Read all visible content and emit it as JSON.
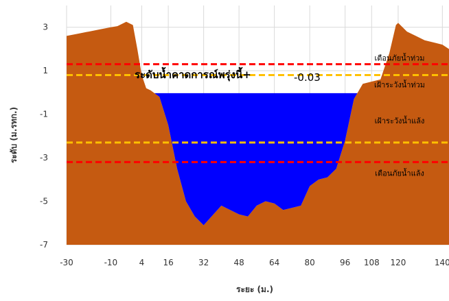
{
  "chart_data": {
    "type": "area",
    "title": "",
    "xlabel": "ระยะ (ม.)",
    "ylabel": "ระดับ (ม.รทก.)",
    "xlim": [
      -30,
      143
    ],
    "ylim": [
      -7,
      4
    ],
    "x_ticks": [
      -30,
      -10,
      4,
      16,
      32,
      48,
      64,
      80,
      96,
      108,
      120,
      140
    ],
    "y_ticks": [
      3,
      1,
      -1,
      -3,
      -5,
      -7
    ],
    "grid": true,
    "ground_profile": {
      "name": "",
      "color": "#c55a11",
      "points": [
        [
          -30,
          2.6
        ],
        [
          -25,
          2.7
        ],
        [
          -20,
          2.8
        ],
        [
          -15,
          2.9
        ],
        [
          -10,
          3.0
        ],
        [
          -7,
          3.05
        ],
        [
          -3,
          3.25
        ],
        [
          0,
          3.1
        ],
        [
          2,
          2.0
        ],
        [
          4,
          0.8
        ],
        [
          6,
          0.2
        ],
        [
          8,
          0.1
        ],
        [
          12,
          -0.2
        ],
        [
          16,
          -1.5
        ],
        [
          20,
          -3.5
        ],
        [
          24,
          -5.0
        ],
        [
          28,
          -5.7
        ],
        [
          32,
          -6.1
        ],
        [
          40,
          -5.2
        ],
        [
          44,
          -5.4
        ],
        [
          48,
          -5.6
        ],
        [
          52,
          -5.7
        ],
        [
          56,
          -5.2
        ],
        [
          60,
          -5.0
        ],
        [
          64,
          -5.1
        ],
        [
          68,
          -5.4
        ],
        [
          72,
          -5.3
        ],
        [
          76,
          -5.2
        ],
        [
          80,
          -4.3
        ],
        [
          84,
          -4.0
        ],
        [
          88,
          -3.9
        ],
        [
          92,
          -3.5
        ],
        [
          96,
          -2.2
        ],
        [
          100,
          -0.3
        ],
        [
          104,
          0.4
        ],
        [
          108,
          0.5
        ],
        [
          112,
          0.6
        ],
        [
          116,
          1.8
        ],
        [
          119,
          3.1
        ],
        [
          120,
          3.2
        ],
        [
          124,
          2.8
        ],
        [
          128,
          2.6
        ],
        [
          132,
          2.4
        ],
        [
          136,
          2.3
        ],
        [
          140,
          2.2
        ],
        [
          143,
          2.0
        ]
      ]
    },
    "water_surface": {
      "level": -0.03,
      "color": "#0000ff"
    },
    "reference_lines": [
      {
        "label": "เตือนภัยน้ำท่วม",
        "value": 1.3,
        "color": "#ff0000"
      },
      {
        "label": "เฝ้าระวังน้ำท่วม",
        "value": 0.8,
        "color": "#ffc000"
      },
      {
        "label": "เฝ้าระวังน้ำแล้ง",
        "value": -2.3,
        "color": "#ffc000"
      },
      {
        "label": "เตือนภัยน้ำแล้ง",
        "value": -3.2,
        "color": "#ff0000"
      }
    ],
    "annotation": {
      "text": "ระดับน้ำคาดการณ์พรุ่งนี้+",
      "value_text": "-0.03"
    }
  }
}
